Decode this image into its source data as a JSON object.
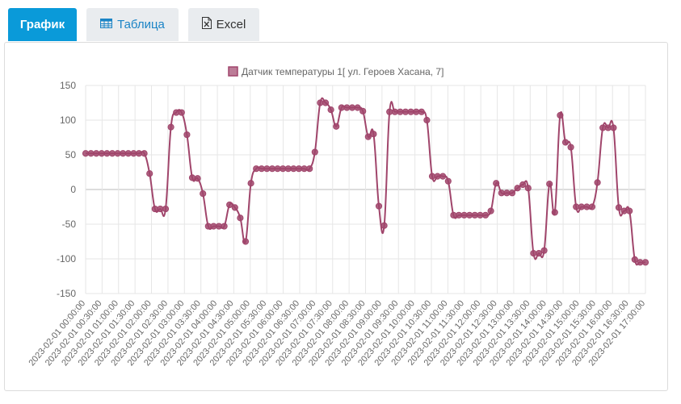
{
  "tabs": {
    "chart_label": "График",
    "table_label": "Таблица",
    "excel_label": "Excel"
  },
  "colors": {
    "accent": "#0a9ad9",
    "series": "#a0456b"
  },
  "chart_data": {
    "type": "line",
    "legend": "Датчик температуры 1[ ул. Героев Хасана, 7]",
    "legend_position": "top",
    "grid": true,
    "ylim": [
      -150,
      150
    ],
    "yticks": [
      150,
      100,
      50,
      0,
      -50,
      -100,
      -150
    ],
    "x_tick_labels": [
      "2023-02-01 00:00:00",
      "2023-02-01 00:30:00",
      "2023-02-01 01:00:00",
      "2023-02-01 01:30:00",
      "2023-02-01 02:00:00",
      "2023-02-01 02:30:00",
      "2023-02-01 03:00:00",
      "2023-02-01 03:30:00",
      "2023-02-01 04:00:00",
      "2023-02-01 04:30:00",
      "2023-02-01 05:00:00",
      "2023-02-01 05:30:00",
      "2023-02-01 06:00:00",
      "2023-02-01 06:30:00",
      "2023-02-01 07:00:00",
      "2023-02-01 07:30:00",
      "2023-02-01 08:00:00",
      "2023-02-01 08:30:00",
      "2023-02-01 09:00:00",
      "2023-02-01 09:30:00",
      "2023-02-01 10:00:00",
      "2023-02-01 10:30:00",
      "2023-02-01 11:00:00",
      "2023-02-01 11:30:00",
      "2023-02-01 12:00:00",
      "2023-02-01 12:30:00",
      "2023-02-01 13:00:00",
      "2023-02-01 13:30:00",
      "2023-02-01 14:00:00",
      "2023-02-01 14:30:00",
      "2023-02-01 15:00:00",
      "2023-02-01 15:30:00",
      "2023-02-01 16:00:00",
      "2023-02-01 16:30:00",
      "2023-02-01 17:00:00"
    ],
    "series": [
      {
        "name": "Датчик температуры 1[ ул. Героев Хасана, 7]",
        "values": [
          52,
          52,
          52,
          52,
          52,
          52,
          52,
          52,
          52,
          52,
          52,
          52,
          23,
          -28,
          -28,
          -28,
          90,
          111,
          111,
          79,
          17,
          16,
          -6,
          -53,
          -53,
          -53,
          -53,
          -22,
          -26,
          -41,
          -75,
          9,
          30,
          30,
          30,
          30,
          30,
          30,
          30,
          30,
          30,
          30,
          30,
          54,
          125,
          125,
          115,
          91,
          118,
          118,
          118,
          118,
          113,
          76,
          80,
          -24,
          -52,
          112,
          112,
          112,
          112,
          112,
          112,
          112,
          100,
          19,
          19,
          19,
          12,
          -37,
          -37,
          -37,
          -37,
          -37,
          -37,
          -37,
          -31,
          9,
          -5,
          -5,
          -5,
          2,
          7,
          2,
          -92,
          -92,
          -88,
          8,
          -33,
          107,
          68,
          61,
          -25,
          -25,
          -25,
          -25,
          10,
          89,
          89,
          89,
          -26,
          -31,
          -31,
          -101,
          -105,
          -105
        ]
      }
    ]
  }
}
